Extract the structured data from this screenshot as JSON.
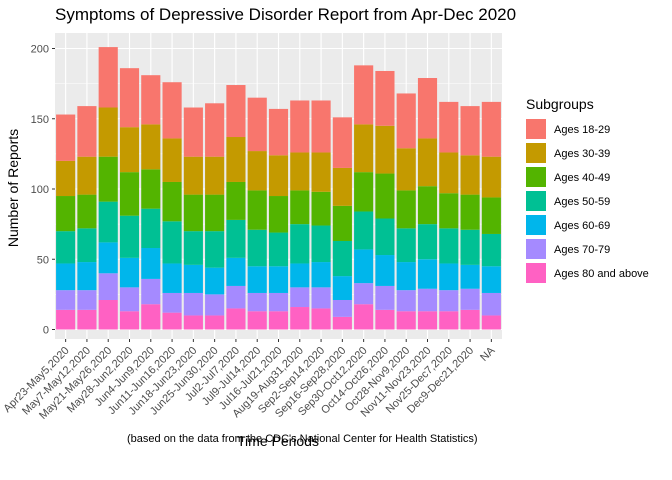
{
  "chart_data": {
    "type": "bar",
    "stacked": true,
    "title": "Symptoms of Depressive Disorder Report from Apr-Dec 2020",
    "xlabel": "Time Periods",
    "ylabel": "Number of Reports",
    "caption": "(based on the data from the CDC's National Center for Health Statistics)",
    "ylim": [
      0,
      208
    ],
    "yticks": [
      0,
      50,
      100,
      150,
      200
    ],
    "grid": true,
    "legend_title": "Subgroups",
    "legend_position": "right",
    "categories": [
      "Apr23-May5,2020",
      "May7-May12,2020",
      "May21-May26,2020",
      "May28-Jun2,2020",
      "Jun4-Jun9,2020",
      "Jun11-Jun16,2020",
      "Jun18-Jun23,2020",
      "Jun25-Jun30,2020",
      "Jul2-Jul7,2020",
      "Jul9-Jul14,2020",
      "Jul16-Jul21,2020",
      "Aug19-Aug31,2020",
      "Sep2-Sep14,2020",
      "Sep16-Sep28,2020",
      "Sep30-Oct12,2020",
      "Oct14-Oct26,2020",
      "Oct28-Nov9,2020",
      "Nov11-Nov23,2020",
      "Nov25-Dec7,2020",
      "Dec9-Dec21,2020",
      "NA"
    ],
    "series": [
      {
        "name": "Ages 80 and above",
        "color": "#FF61C3",
        "values": [
          14,
          14,
          21,
          13,
          18,
          12,
          10,
          10,
          15,
          13,
          13,
          16,
          15,
          9,
          18,
          14,
          13,
          13,
          13,
          14,
          10
        ]
      },
      {
        "name": "Ages 70-79",
        "color": "#A58AFF",
        "values": [
          14,
          14,
          19,
          17,
          18,
          14,
          16,
          15,
          16,
          13,
          13,
          14,
          15,
          12,
          15,
          17,
          15,
          16,
          15,
          15,
          16
        ]
      },
      {
        "name": "Ages 60-69",
        "color": "#00B6EB",
        "values": [
          19,
          20,
          22,
          21,
          22,
          21,
          20,
          19,
          20,
          19,
          19,
          17,
          18,
          17,
          24,
          22,
          20,
          21,
          19,
          17,
          19
        ]
      },
      {
        "name": "Ages 50-59",
        "color": "#00C094",
        "values": [
          23,
          24,
          29,
          30,
          28,
          30,
          24,
          26,
          27,
          26,
          24,
          28,
          26,
          25,
          27,
          26,
          24,
          25,
          25,
          25,
          23
        ]
      },
      {
        "name": "Ages 40-49",
        "color": "#53B400",
        "values": [
          25,
          24,
          32,
          31,
          28,
          28,
          26,
          26,
          27,
          28,
          26,
          24,
          24,
          25,
          28,
          32,
          27,
          27,
          25,
          25,
          26
        ]
      },
      {
        "name": "Ages 30-39",
        "color": "#C49A00",
        "values": [
          25,
          27,
          35,
          32,
          32,
          31,
          27,
          27,
          32,
          28,
          29,
          27,
          28,
          27,
          34,
          34,
          30,
          34,
          29,
          28,
          29
        ]
      },
      {
        "name": "Ages 18-29",
        "color": "#F8766D",
        "values": [
          33,
          36,
          43,
          42,
          35,
          40,
          35,
          38,
          37,
          38,
          33,
          37,
          37,
          36,
          42,
          39,
          39,
          43,
          36,
          35,
          39
        ]
      }
    ]
  }
}
